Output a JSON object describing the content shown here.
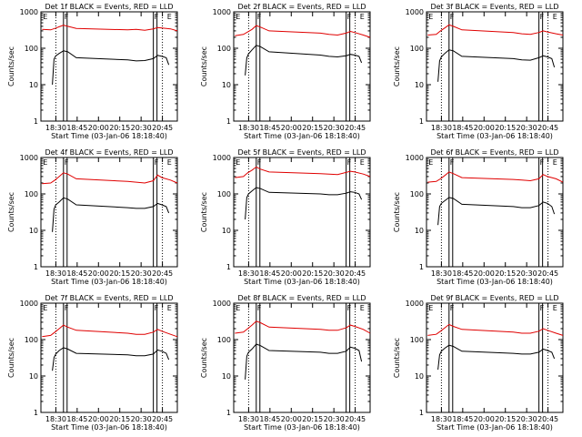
{
  "colors": {
    "events": "#000000",
    "lld": "#e00000",
    "axis": "#000000",
    "background": "#ffffff"
  },
  "chart_data": [
    {
      "type": "line",
      "title": "Det 1f BLACK = Events, RED = LLD",
      "xlabel": "Start Time (03-Jan-06 18:18:40)",
      "ylabel": "Counts/sec",
      "yscale": "log",
      "ylim": [
        1,
        1000
      ],
      "xlim": [
        "18:18:40",
        "20:58:00"
      ],
      "x_ticks": [
        "18:30",
        "18:45",
        "20:00",
        "20:15",
        "20:30",
        "20:45"
      ],
      "y_ticks": [
        "1",
        "10",
        "100",
        "1000"
      ],
      "flags": [
        {
          "label": "E",
          "x": "18:20"
        },
        {
          "label": "F",
          "x": "18:45"
        },
        {
          "label": "F",
          "x": "20:30"
        },
        {
          "label": "E",
          "x": "20:45"
        }
      ],
      "series": [
        {
          "color": "red",
          "x": [
            "18:20",
            "18:30",
            "18:35",
            "18:40",
            "18:45",
            "18:50",
            "19:00",
            "20:00",
            "20:10",
            "20:20",
            "20:30",
            "20:35",
            "20:40",
            "20:50",
            "20:58"
          ],
          "values": [
            330,
            320,
            350,
            390,
            430,
            400,
            350,
            320,
            330,
            310,
            340,
            370,
            360,
            340,
            300
          ]
        },
        {
          "color": "black",
          "x": [
            "18:32",
            "18:34",
            "18:36",
            "18:40",
            "18:45",
            "18:50",
            "19:00",
            "20:00",
            "20:10",
            "20:20",
            "20:30",
            "20:35",
            "20:40",
            "20:45",
            "20:48"
          ],
          "values": [
            10,
            50,
            62,
            72,
            85,
            80,
            55,
            48,
            45,
            46,
            52,
            64,
            60,
            55,
            35
          ]
        }
      ]
    },
    {
      "type": "line",
      "title": "Det 2f BLACK = Events, RED = LLD",
      "xlabel": "Start Time (03-Jan-06 18:18:40)",
      "ylabel": "Counts/sec",
      "yscale": "log",
      "ylim": [
        1,
        1000
      ],
      "xlim": [
        "18:18:40",
        "20:58:00"
      ],
      "x_ticks": [
        "18:30",
        "18:45",
        "20:00",
        "20:15",
        "20:30",
        "20:45"
      ],
      "y_ticks": [
        "1",
        "10",
        "100",
        "1000"
      ],
      "flags": [
        {
          "label": "E",
          "x": "18:20"
        },
        {
          "label": "F",
          "x": "18:45"
        },
        {
          "label": "F",
          "x": "20:30"
        },
        {
          "label": "E",
          "x": "20:45"
        }
      ],
      "series": [
        {
          "color": "red",
          "x": [
            "18:20",
            "18:30",
            "18:35",
            "18:40",
            "18:45",
            "18:50",
            "19:00",
            "20:00",
            "20:10",
            "20:20",
            "20:30",
            "20:35",
            "20:40",
            "20:50",
            "20:58"
          ],
          "values": [
            220,
            240,
            280,
            330,
            420,
            380,
            300,
            260,
            240,
            230,
            260,
            290,
            270,
            230,
            200
          ]
        },
        {
          "color": "black",
          "x": [
            "18:32",
            "18:34",
            "18:36",
            "18:40",
            "18:45",
            "18:50",
            "19:00",
            "20:00",
            "20:10",
            "20:20",
            "20:30",
            "20:35",
            "20:40",
            "20:45",
            "20:48"
          ],
          "values": [
            18,
            55,
            70,
            90,
            120,
            110,
            80,
            65,
            60,
            58,
            62,
            68,
            65,
            60,
            40
          ]
        }
      ]
    },
    {
      "type": "line",
      "title": "Det 3f BLACK = Events, RED = LLD",
      "xlabel": "Start Time (03-Jan-06 18:18:40)",
      "ylabel": "Counts/sec",
      "yscale": "log",
      "ylim": [
        1,
        1000
      ],
      "xlim": [
        "18:18:40",
        "20:58:00"
      ],
      "x_ticks": [
        "18:30",
        "18:45",
        "20:00",
        "20:15",
        "20:30",
        "20:45"
      ],
      "y_ticks": [
        "1",
        "10",
        "100",
        "1000"
      ],
      "flags": [
        {
          "label": "E",
          "x": "18:20"
        },
        {
          "label": "F",
          "x": "18:45"
        },
        {
          "label": "F",
          "x": "20:30"
        },
        {
          "label": "E",
          "x": "20:45"
        }
      ],
      "series": [
        {
          "color": "red",
          "x": [
            "18:20",
            "18:30",
            "18:35",
            "18:40",
            "18:45",
            "18:50",
            "19:00",
            "20:00",
            "20:10",
            "20:20",
            "20:30",
            "20:35",
            "20:40",
            "20:50",
            "20:58"
          ],
          "values": [
            230,
            240,
            300,
            360,
            440,
            400,
            320,
            270,
            250,
            240,
            270,
            300,
            280,
            250,
            230
          ]
        },
        {
          "color": "black",
          "x": [
            "18:32",
            "18:34",
            "18:36",
            "18:40",
            "18:45",
            "18:50",
            "19:00",
            "20:00",
            "20:10",
            "20:20",
            "20:30",
            "20:35",
            "20:40",
            "20:45",
            "20:48"
          ],
          "values": [
            12,
            45,
            58,
            72,
            90,
            85,
            60,
            52,
            48,
            47,
            55,
            62,
            58,
            52,
            30
          ]
        }
      ]
    },
    {
      "type": "line",
      "title": "Det 4f BLACK = Events, RED = LLD",
      "xlabel": "Start Time (03-Jan-06 18:18:40)",
      "ylabel": "Counts/sec",
      "yscale": "log",
      "ylim": [
        1,
        1000
      ],
      "xlim": [
        "18:18:40",
        "20:58:00"
      ],
      "x_ticks": [
        "18:30",
        "18:45",
        "20:00",
        "20:15",
        "20:30",
        "20:45"
      ],
      "y_ticks": [
        "1",
        "10",
        "100",
        "1000"
      ],
      "flags": [
        {
          "label": "E",
          "x": "18:20"
        },
        {
          "label": "F",
          "x": "18:45"
        },
        {
          "label": "F",
          "x": "20:30"
        },
        {
          "label": "E",
          "x": "20:45"
        }
      ],
      "series": [
        {
          "color": "red",
          "x": [
            "18:20",
            "18:30",
            "18:35",
            "18:40",
            "18:45",
            "18:50",
            "19:00",
            "20:00",
            "20:10",
            "20:20",
            "20:30",
            "20:35",
            "20:40",
            "20:50",
            "20:58"
          ],
          "values": [
            190,
            200,
            240,
            300,
            380,
            350,
            260,
            220,
            210,
            200,
            230,
            330,
            280,
            240,
            200
          ]
        },
        {
          "color": "black",
          "x": [
            "18:32",
            "18:34",
            "18:36",
            "18:40",
            "18:45",
            "18:50",
            "19:00",
            "20:00",
            "20:10",
            "20:20",
            "20:30",
            "20:35",
            "20:40",
            "20:45",
            "20:48"
          ],
          "values": [
            9,
            38,
            50,
            60,
            78,
            72,
            50,
            42,
            40,
            40,
            45,
            55,
            50,
            45,
            30
          ]
        }
      ]
    },
    {
      "type": "line",
      "title": "Det 5f BLACK = Events, RED = LLD",
      "xlabel": "Start Time (03-Jan-06 18:18:40)",
      "ylabel": "Counts/sec",
      "yscale": "log",
      "ylim": [
        1,
        1000
      ],
      "xlim": [
        "18:18:40",
        "20:58:00"
      ],
      "x_ticks": [
        "18:30",
        "18:45",
        "20:00",
        "20:15",
        "20:30",
        "20:45"
      ],
      "y_ticks": [
        "1",
        "10",
        "100",
        "1000"
      ],
      "flags": [
        {
          "label": "E",
          "x": "18:20"
        },
        {
          "label": "F",
          "x": "18:45"
        },
        {
          "label": "F",
          "x": "20:30"
        },
        {
          "label": "E",
          "x": "20:45"
        }
      ],
      "series": [
        {
          "color": "red",
          "x": [
            "18:20",
            "18:30",
            "18:35",
            "18:40",
            "18:45",
            "18:50",
            "19:00",
            "20:00",
            "20:10",
            "20:20",
            "20:30",
            "20:35",
            "20:40",
            "20:50",
            "20:58"
          ],
          "values": [
            280,
            300,
            380,
            450,
            550,
            480,
            400,
            360,
            350,
            340,
            390,
            420,
            400,
            350,
            300
          ]
        },
        {
          "color": "black",
          "x": [
            "18:32",
            "18:34",
            "18:36",
            "18:40",
            "18:45",
            "18:50",
            "19:00",
            "20:00",
            "20:10",
            "20:20",
            "20:30",
            "20:35",
            "20:40",
            "20:45",
            "20:48"
          ],
          "values": [
            20,
            80,
            100,
            120,
            150,
            140,
            110,
            100,
            95,
            95,
            105,
            115,
            110,
            100,
            70
          ]
        }
      ]
    },
    {
      "type": "line",
      "title": "Det 6f BLACK = Events, RED = LLD",
      "xlabel": "Start Time (03-Jan-06 18:18:40)",
      "ylabel": "Counts/sec",
      "yscale": "log",
      "ylim": [
        1,
        1000
      ],
      "xlim": [
        "18:18:40",
        "20:58:00"
      ],
      "x_ticks": [
        "18:30",
        "18:45",
        "20:00",
        "20:15",
        "20:30",
        "20:45"
      ],
      "y_ticks": [
        "1",
        "10",
        "100",
        "1000"
      ],
      "flags": [
        {
          "label": "E",
          "x": "18:20"
        },
        {
          "label": "F",
          "x": "18:45"
        },
        {
          "label": "F",
          "x": "20:30"
        },
        {
          "label": "E",
          "x": "20:45"
        }
      ],
      "series": [
        {
          "color": "red",
          "x": [
            "18:20",
            "18:30",
            "18:35",
            "18:40",
            "18:45",
            "18:50",
            "19:00",
            "20:00",
            "20:10",
            "20:20",
            "20:30",
            "20:35",
            "20:40",
            "20:50",
            "20:58"
          ],
          "values": [
            210,
            220,
            260,
            320,
            400,
            360,
            280,
            250,
            240,
            230,
            260,
            340,
            300,
            260,
            210
          ]
        },
        {
          "color": "black",
          "x": [
            "18:32",
            "18:34",
            "18:36",
            "18:40",
            "18:45",
            "18:50",
            "19:00",
            "20:00",
            "20:10",
            "20:20",
            "20:30",
            "20:35",
            "20:40",
            "20:45",
            "20:48"
          ],
          "values": [
            14,
            45,
            55,
            65,
            80,
            75,
            52,
            45,
            42,
            42,
            48,
            60,
            55,
            45,
            28
          ]
        }
      ]
    },
    {
      "type": "line",
      "title": "Det 7f BLACK = Events, RED = LLD",
      "xlabel": "Start Time (03-Jan-06 18:18:40)",
      "ylabel": "Counts/sec",
      "yscale": "log",
      "ylim": [
        1,
        1000
      ],
      "xlim": [
        "18:18:40",
        "20:58:00"
      ],
      "x_ticks": [
        "18:30",
        "18:45",
        "20:00",
        "20:15",
        "20:30",
        "20:45"
      ],
      "y_ticks": [
        "1",
        "10",
        "100",
        "1000"
      ],
      "flags": [
        {
          "label": "E",
          "x": "18:20"
        },
        {
          "label": "F",
          "x": "18:45"
        },
        {
          "label": "F",
          "x": "20:30"
        },
        {
          "label": "E",
          "x": "20:45"
        }
      ],
      "series": [
        {
          "color": "red",
          "x": [
            "18:20",
            "18:30",
            "18:35",
            "18:40",
            "18:45",
            "18:50",
            "19:00",
            "20:00",
            "20:10",
            "20:20",
            "20:30",
            "20:35",
            "20:40",
            "20:50",
            "20:58"
          ],
          "values": [
            120,
            130,
            160,
            200,
            250,
            220,
            180,
            150,
            140,
            140,
            160,
            190,
            170,
            140,
            120
          ]
        },
        {
          "color": "black",
          "x": [
            "18:32",
            "18:34",
            "18:36",
            "18:40",
            "18:45",
            "18:50",
            "19:00",
            "20:00",
            "20:10",
            "20:20",
            "20:30",
            "20:35",
            "20:40",
            "20:45",
            "20:48"
          ],
          "values": [
            14,
            32,
            40,
            50,
            60,
            55,
            42,
            38,
            36,
            36,
            40,
            52,
            48,
            42,
            28
          ]
        }
      ]
    },
    {
      "type": "line",
      "title": "Det 8f BLACK = Events, RED = LLD",
      "xlabel": "Start Time (03-Jan-06 18:18:40)",
      "ylabel": "Counts/sec",
      "yscale": "log",
      "ylim": [
        1,
        1000
      ],
      "xlim": [
        "18:18:40",
        "20:58:00"
      ],
      "x_ticks": [
        "18:30",
        "18:45",
        "20:00",
        "20:15",
        "20:30",
        "20:45"
      ],
      "y_ticks": [
        "1",
        "10",
        "100",
        "1000"
      ],
      "flags": [
        {
          "label": "E",
          "x": "18:20"
        },
        {
          "label": "F",
          "x": "18:45"
        },
        {
          "label": "F",
          "x": "20:30"
        },
        {
          "label": "E",
          "x": "20:45"
        }
      ],
      "series": [
        {
          "color": "red",
          "x": [
            "18:20",
            "18:30",
            "18:35",
            "18:40",
            "18:45",
            "18:50",
            "19:00",
            "20:00",
            "20:10",
            "20:20",
            "20:30",
            "20:35",
            "20:40",
            "20:50",
            "20:58"
          ],
          "values": [
            150,
            160,
            200,
            250,
            320,
            290,
            220,
            190,
            180,
            180,
            210,
            250,
            230,
            190,
            150
          ]
        },
        {
          "color": "black",
          "x": [
            "18:32",
            "18:34",
            "18:36",
            "18:40",
            "18:45",
            "18:50",
            "19:00",
            "20:00",
            "20:10",
            "20:20",
            "20:30",
            "20:35",
            "20:40",
            "20:45",
            "20:48"
          ],
          "values": [
            8,
            35,
            45,
            55,
            75,
            68,
            50,
            45,
            42,
            42,
            48,
            62,
            58,
            50,
            25
          ]
        }
      ]
    },
    {
      "type": "line",
      "title": "Det 9f BLACK = Events, RED = LLD",
      "xlabel": "Start Time (03-Jan-06 18:18:40)",
      "ylabel": "Counts/sec",
      "yscale": "log",
      "ylim": [
        1,
        1000
      ],
      "xlim": [
        "18:18:40",
        "20:58:00"
      ],
      "x_ticks": [
        "18:30",
        "18:45",
        "20:00",
        "20:15",
        "20:30",
        "20:45"
      ],
      "y_ticks": [
        "1",
        "10",
        "100",
        "1000"
      ],
      "flags": [
        {
          "label": "E",
          "x": "18:20"
        },
        {
          "label": "F",
          "x": "18:45"
        },
        {
          "label": "F",
          "x": "20:30"
        },
        {
          "label": "E",
          "x": "20:45"
        }
      ],
      "series": [
        {
          "color": "red",
          "x": [
            "18:20",
            "18:30",
            "18:35",
            "18:40",
            "18:45",
            "18:50",
            "19:00",
            "20:00",
            "20:10",
            "20:20",
            "20:30",
            "20:35",
            "20:40",
            "20:50",
            "20:58"
          ],
          "values": [
            130,
            140,
            170,
            210,
            260,
            230,
            190,
            160,
            150,
            150,
            170,
            200,
            180,
            150,
            130
          ]
        },
        {
          "color": "black",
          "x": [
            "18:32",
            "18:34",
            "18:36",
            "18:40",
            "18:45",
            "18:50",
            "19:00",
            "20:00",
            "20:10",
            "20:20",
            "20:30",
            "20:35",
            "20:40",
            "20:45",
            "20:48"
          ],
          "values": [
            15,
            38,
            48,
            58,
            70,
            65,
            48,
            42,
            40,
            40,
            45,
            55,
            50,
            45,
            30
          ]
        }
      ]
    }
  ]
}
